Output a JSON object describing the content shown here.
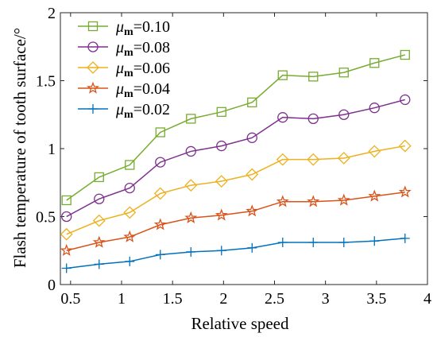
{
  "chart_data": {
    "type": "line",
    "title": "",
    "xlabel": "Relative speed",
    "ylabel": "Flash temperature of tooth surface/°",
    "xlim": [
      0.4,
      4
    ],
    "ylim": [
      0,
      2
    ],
    "xticks": [
      0.5,
      1,
      1.5,
      2,
      2.5,
      3,
      3.5,
      4
    ],
    "xtick_labels": [
      "0.5",
      "1",
      "1.5",
      "2",
      "2.5",
      "3",
      "3.5",
      "4"
    ],
    "yticks": [
      0,
      0.5,
      1,
      1.5,
      2
    ],
    "ytick_labels": [
      "0",
      "0.5",
      "1",
      "1.5",
      "2"
    ],
    "grid": false,
    "legend_position": "top-left",
    "x": [
      0.46,
      0.78,
      1.08,
      1.38,
      1.68,
      1.98,
      2.28,
      2.58,
      2.88,
      3.18,
      3.48,
      3.78
    ],
    "series": [
      {
        "name": "μm=0.10",
        "name_symbol": "μ",
        "name_sub": "m",
        "name_value": "=0.10",
        "marker": "square",
        "color": "#77ac30",
        "values": [
          0.62,
          0.79,
          0.88,
          1.12,
          1.22,
          1.27,
          1.34,
          1.54,
          1.53,
          1.56,
          1.63,
          1.69
        ]
      },
      {
        "name": "μm=0.08",
        "name_symbol": "μ",
        "name_sub": "m",
        "name_value": "=0.08",
        "marker": "circle",
        "color": "#7e2f8e",
        "values": [
          0.5,
          0.63,
          0.71,
          0.9,
          0.98,
          1.02,
          1.08,
          1.23,
          1.22,
          1.25,
          1.3,
          1.36
        ]
      },
      {
        "name": "μm=0.06",
        "name_symbol": "μ",
        "name_sub": "m",
        "name_value": "=0.06",
        "marker": "diamond",
        "color": "#edb120",
        "values": [
          0.37,
          0.47,
          0.53,
          0.67,
          0.73,
          0.76,
          0.81,
          0.92,
          0.92,
          0.93,
          0.98,
          1.02
        ]
      },
      {
        "name": "μm=0.04",
        "name_symbol": "μ",
        "name_sub": "m",
        "name_value": "=0.04",
        "marker": "star",
        "color": "#d95319",
        "values": [
          0.25,
          0.31,
          0.35,
          0.44,
          0.49,
          0.51,
          0.54,
          0.61,
          0.61,
          0.62,
          0.65,
          0.68
        ]
      },
      {
        "name": "μm=0.02",
        "name_symbol": "μ",
        "name_sub": "m",
        "name_value": "=0.02",
        "marker": "plus",
        "color": "#0072bd",
        "values": [
          0.12,
          0.15,
          0.17,
          0.22,
          0.24,
          0.25,
          0.27,
          0.31,
          0.31,
          0.31,
          0.32,
          0.34
        ]
      }
    ]
  }
}
